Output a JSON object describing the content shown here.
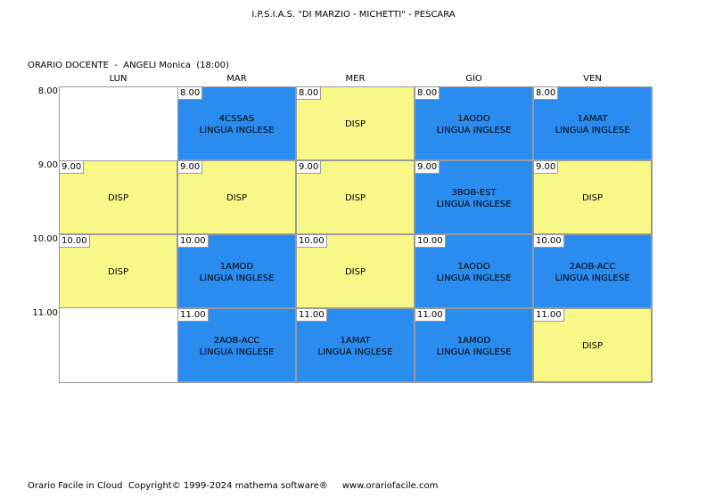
{
  "header": {
    "school": "I.P.S.I.A.S. \"DI MARZIO - MICHETTI\" - PESCARA",
    "teacher_line": "ORARIO DOCENTE  -  ANGELI Monica  (18:00)"
  },
  "days": [
    "LUN",
    "MAR",
    "MER",
    "GIO",
    "VEN"
  ],
  "hours": [
    "8.00",
    "9.00",
    "10.00",
    "11.00"
  ],
  "colors": {
    "disp": "#f8f888",
    "lesson": "#2b8cf0",
    "border": "#9a9a9a"
  },
  "schedule": [
    [
      {
        "type": "empty"
      },
      {
        "type": "lesson",
        "time": "8.00",
        "class": "4CSSAS",
        "subject": "LINGUA INGLESE"
      },
      {
        "type": "disp",
        "time": "8.00",
        "label": "DISP"
      },
      {
        "type": "lesson",
        "time": "8.00",
        "class": "1AODO",
        "subject": "LINGUA INGLESE"
      },
      {
        "type": "lesson",
        "time": "8.00",
        "class": "1AMAT",
        "subject": "LINGUA INGLESE"
      }
    ],
    [
      {
        "type": "disp",
        "time": "9.00",
        "label": "DISP"
      },
      {
        "type": "disp",
        "time": "9.00",
        "label": "DISP"
      },
      {
        "type": "disp",
        "time": "9.00",
        "label": "DISP"
      },
      {
        "type": "lesson",
        "time": "9.00",
        "class": "3BOB-EST",
        "subject": "LINGUA INGLESE"
      },
      {
        "type": "disp",
        "time": "9.00",
        "label": "DISP"
      }
    ],
    [
      {
        "type": "disp",
        "time": "10.00",
        "label": "DISP"
      },
      {
        "type": "lesson",
        "time": "10.00",
        "class": "1AMOD",
        "subject": "LINGUA INGLESE"
      },
      {
        "type": "disp",
        "time": "10.00",
        "label": "DISP"
      },
      {
        "type": "lesson",
        "time": "10.00",
        "class": "1AODO",
        "subject": "LINGUA INGLESE"
      },
      {
        "type": "lesson",
        "time": "10.00",
        "class": "2AOB-ACC",
        "subject": "LINGUA INGLESE"
      }
    ],
    [
      {
        "type": "empty"
      },
      {
        "type": "lesson",
        "time": "11.00",
        "class": "2AOB-ACC",
        "subject": "LINGUA INGLESE"
      },
      {
        "type": "lesson",
        "time": "11.00",
        "class": "1AMAT",
        "subject": "LINGUA INGLESE"
      },
      {
        "type": "lesson",
        "time": "11.00",
        "class": "1AMOD",
        "subject": "LINGUA INGLESE"
      },
      {
        "type": "disp",
        "time": "11.00",
        "label": "DISP"
      }
    ]
  ],
  "footer": {
    "text": "Orario Facile in Cloud  Copyright© 1999-2024 mathema software®     www.orariofacile.com"
  }
}
